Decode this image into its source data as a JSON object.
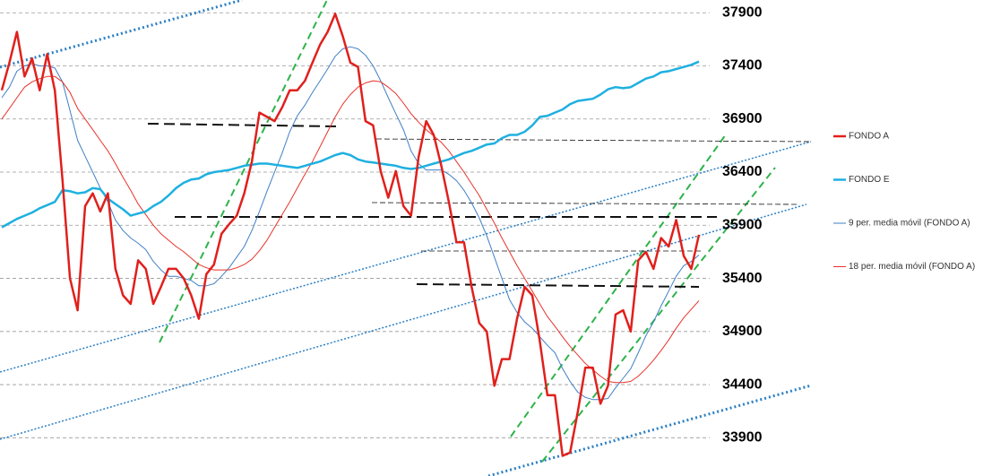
{
  "chart_data": {
    "type": "line",
    "categories": [
      null,
      null,
      null,
      null,
      null,
      null,
      null,
      null,
      null,
      null,
      null,
      null,
      null,
      null,
      null,
      null,
      null,
      null,
      null,
      null,
      null,
      null,
      null,
      null,
      null,
      null,
      null,
      null,
      null,
      null,
      null,
      null,
      null,
      null,
      null,
      null,
      null,
      null,
      null,
      null,
      null,
      null,
      null,
      null,
      null,
      null,
      null,
      null,
      null,
      null,
      null,
      null,
      null,
      null,
      null,
      null,
      null,
      null,
      null,
      null,
      null,
      null,
      null,
      null,
      null,
      null,
      null,
      null,
      null,
      null,
      null,
      null,
      null,
      null,
      null,
      null,
      null,
      null,
      null,
      null,
      null,
      null,
      null,
      null,
      null,
      null,
      null,
      null,
      null,
      null,
      null,
      null,
      null
    ],
    "series": [
      {
        "name": "FONDO A",
        "color": "#e0201c",
        "width": 2.5,
        "values": [
          37170,
          37430,
          37720,
          37300,
          37470,
          37170,
          37510,
          37170,
          36330,
          35400,
          35100,
          36080,
          36200,
          36030,
          36200,
          35490,
          35240,
          35160,
          35570,
          35490,
          35160,
          35320,
          35490,
          35490,
          35400,
          35240,
          35020,
          35440,
          35530,
          35820,
          35910,
          35990,
          36200,
          36500,
          36960,
          36920,
          36880,
          37010,
          37170,
          37170,
          37260,
          37430,
          37600,
          37720,
          37890,
          37680,
          37430,
          37390,
          36880,
          36840,
          36410,
          36160,
          36410,
          36080,
          35990,
          36540,
          36880,
          36750,
          36460,
          36120,
          35740,
          35740,
          35320,
          34980,
          34900,
          34390,
          34640,
          34640,
          35020,
          35320,
          35240,
          34810,
          34300,
          34300,
          33730,
          33760,
          34140,
          34560,
          34560,
          34220,
          34390,
          35060,
          35100,
          34900,
          35570,
          35650,
          35490,
          35780,
          35700,
          35950,
          35610,
          35490,
          35810
        ]
      },
      {
        "name": "FONDO E",
        "color": "#1eb0e0",
        "width": 2.5,
        "values": [
          35880,
          35920,
          35960,
          35990,
          36020,
          36060,
          36090,
          36120,
          36230,
          36220,
          36200,
          36210,
          36250,
          36240,
          36150,
          36100,
          36050,
          35990,
          36010,
          36030,
          36080,
          36120,
          36180,
          36250,
          36300,
          36330,
          36340,
          36380,
          36400,
          36410,
          36420,
          36440,
          36460,
          36470,
          36480,
          36480,
          36470,
          36460,
          36450,
          36440,
          36460,
          36480,
          36500,
          36530,
          36560,
          36580,
          36560,
          36520,
          36500,
          36490,
          36480,
          36470,
          36460,
          36440,
          36430,
          36440,
          36460,
          36480,
          36500,
          36520,
          36550,
          36580,
          36600,
          36630,
          36660,
          36670,
          36720,
          36750,
          36750,
          36780,
          36840,
          36920,
          36930,
          36960,
          36990,
          37040,
          37070,
          37080,
          37090,
          37130,
          37180,
          37200,
          37190,
          37200,
          37240,
          37280,
          37300,
          37340,
          37350,
          37370,
          37390,
          37410,
          37440
        ]
      },
      {
        "name": "9 per. media móvil (FONDO A)",
        "color": "#3f7fc4",
        "width": 1,
        "values": [
          37100,
          37200,
          37350,
          37400,
          37420,
          37400,
          37400,
          37380,
          37250,
          36980,
          36700,
          36550,
          36400,
          36250,
          36120,
          35950,
          35850,
          35780,
          35730,
          35670,
          35560,
          35480,
          35420,
          35420,
          35400,
          35380,
          35330,
          35330,
          35350,
          35420,
          35500,
          35600,
          35700,
          35850,
          36030,
          36220,
          36400,
          36580,
          36780,
          36930,
          37030,
          37150,
          37260,
          37370,
          37490,
          37560,
          37580,
          37560,
          37500,
          37400,
          37260,
          37100,
          36950,
          36800,
          36600,
          36480,
          36420,
          36420,
          36420,
          36380,
          36320,
          36230,
          36110,
          35970,
          35800,
          35600,
          35400,
          35200,
          35080,
          34990,
          34930,
          34850,
          34770,
          34700,
          34550,
          34430,
          34330,
          34280,
          34260,
          34260,
          34270,
          34370,
          34460,
          34550,
          34700,
          34860,
          34990,
          35140,
          35280,
          35420,
          35520,
          35560,
          35620
        ]
      },
      {
        "name": "18 per. media móvil (FONDO A)",
        "color": "#e8322a",
        "width": 1,
        "values": [
          36900,
          37000,
          37100,
          37200,
          37250,
          37280,
          37300,
          37300,
          37250,
          37150,
          37000,
          36900,
          36800,
          36700,
          36600,
          36480,
          36350,
          36230,
          36100,
          36000,
          35900,
          35820,
          35760,
          35700,
          35650,
          35590,
          35530,
          35500,
          35480,
          35480,
          35480,
          35500,
          35530,
          35580,
          35660,
          35760,
          35880,
          36000,
          36120,
          36250,
          36380,
          36500,
          36640,
          36780,
          36920,
          37040,
          37130,
          37200,
          37240,
          37260,
          37250,
          37200,
          37140,
          37050,
          36950,
          36870,
          36800,
          36740,
          36680,
          36600,
          36500,
          36400,
          36290,
          36180,
          36050,
          35920,
          35780,
          35650,
          35520,
          35400,
          35280,
          35160,
          35040,
          34950,
          34850,
          34760,
          34680,
          34600,
          34540,
          34480,
          34430,
          34420,
          34420,
          34430,
          34480,
          34550,
          34630,
          34720,
          34820,
          34930,
          35030,
          35110,
          35190
        ]
      }
    ],
    "ylim": [
      33540,
      38020
    ],
    "yticks": [
      33900,
      34400,
      34900,
      35400,
      35900,
      36400,
      36900,
      37400,
      37900
    ],
    "grid": true,
    "legend": "right"
  }
}
